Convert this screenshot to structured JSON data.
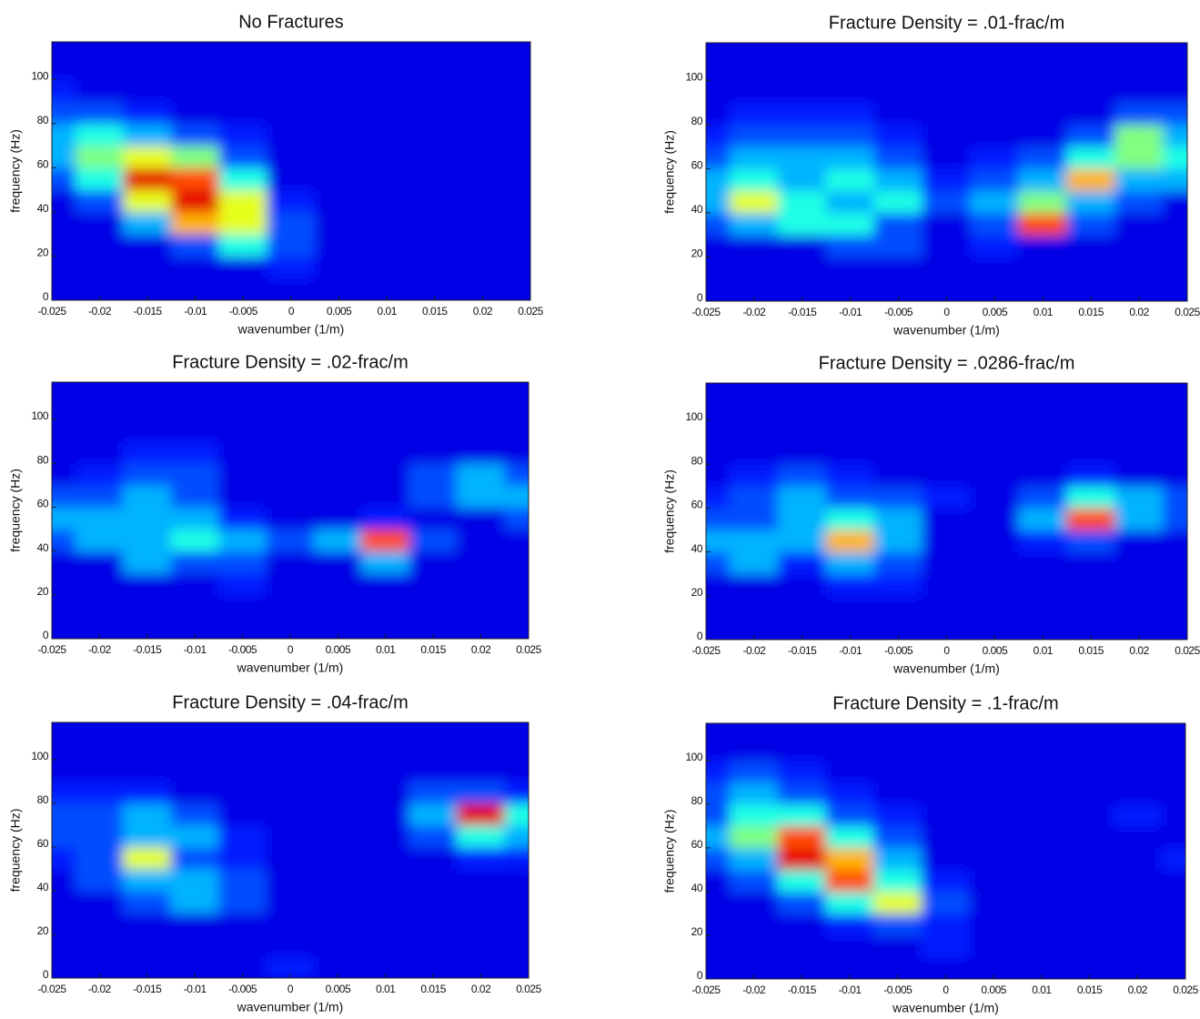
{
  "chart_data": [
    {
      "type": "heatmap",
      "title": "No Fractures",
      "xlabel": "wavenumber (1/m)",
      "ylabel": "frequency (Hz)",
      "colormap": "jet",
      "clim": [
        0,
        10
      ],
      "x": [
        -0.025,
        -0.02,
        -0.015,
        -0.01,
        -0.005,
        0,
        0.005,
        0.01,
        0.015,
        0.02,
        0.025
      ],
      "y": [
        5,
        15,
        25,
        35,
        45,
        55,
        65,
        75,
        85,
        95,
        105,
        115
      ],
      "z": [
        [
          1,
          1,
          1,
          1,
          1,
          1,
          1,
          1,
          1,
          1,
          1
        ],
        [
          1,
          1,
          1,
          1,
          1,
          1.5,
          1,
          1,
          1,
          1,
          1
        ],
        [
          1,
          1,
          1,
          2,
          4,
          2,
          1,
          1,
          1,
          1,
          1
        ],
        [
          1,
          1,
          3,
          7,
          6,
          2,
          1,
          1,
          1,
          1,
          1
        ],
        [
          1,
          2,
          6,
          9,
          6,
          1.5,
          1,
          1,
          1,
          1,
          1
        ],
        [
          2,
          4,
          9,
          8,
          4,
          1,
          1,
          1,
          1,
          1,
          1
        ],
        [
          3,
          5,
          6,
          5,
          2,
          1,
          1,
          1,
          1,
          1,
          1
        ],
        [
          3,
          4,
          3,
          2,
          1.5,
          1,
          1,
          1,
          1,
          1,
          1
        ],
        [
          2,
          2,
          1.5,
          1,
          1,
          1,
          1,
          1,
          1,
          1,
          1
        ],
        [
          1.5,
          1,
          1,
          1,
          1,
          1,
          1,
          1,
          1,
          1,
          1
        ],
        [
          1,
          1,
          1,
          1,
          1,
          1,
          1,
          1,
          1,
          1,
          1
        ],
        [
          1,
          1,
          1,
          1,
          1,
          1,
          1,
          1,
          1,
          1,
          1
        ]
      ],
      "xlim": [
        -0.025,
        0.025
      ],
      "ylim": [
        0,
        117
      ],
      "xticks": [
        -0.025,
        -0.02,
        -0.015,
        -0.01,
        -0.005,
        0,
        0.005,
        0.01,
        0.015,
        0.02,
        0.025
      ],
      "yticks": [
        0,
        20,
        40,
        60,
        80,
        100
      ]
    },
    {
      "type": "heatmap",
      "title": "Fracture Density = .01-frac/m",
      "xlabel": "wavenumber (1/m)",
      "ylabel": "frequency (Hz)",
      "colormap": "jet",
      "clim": [
        0,
        10
      ],
      "x": [
        -0.025,
        -0.02,
        -0.015,
        -0.01,
        -0.005,
        0,
        0.005,
        0.01,
        0.015,
        0.02,
        0.025
      ],
      "y": [
        5,
        15,
        25,
        35,
        45,
        55,
        65,
        75,
        85,
        95,
        105,
        115
      ],
      "z": [
        [
          1,
          1,
          1,
          1,
          1,
          1,
          1,
          1,
          1,
          1,
          1
        ],
        [
          1,
          1,
          1,
          1,
          1,
          1,
          1,
          1,
          1,
          1,
          1
        ],
        [
          1,
          1,
          1,
          2,
          2,
          1,
          1.5,
          1,
          1,
          1,
          1
        ],
        [
          2,
          3,
          4,
          4,
          2,
          1,
          2,
          8,
          2,
          1,
          1
        ],
        [
          3,
          6,
          4,
          3,
          4,
          2,
          3,
          5,
          3,
          2,
          1
        ],
        [
          3,
          4,
          3,
          4,
          3,
          1.5,
          2,
          3,
          7,
          3,
          3
        ],
        [
          2,
          3,
          3,
          3,
          2,
          1,
          1.5,
          2,
          4,
          5,
          4
        ],
        [
          1.5,
          2,
          2,
          2,
          1.5,
          1,
          1,
          1,
          2,
          5,
          3
        ],
        [
          1,
          1.5,
          1.5,
          1.5,
          1,
          1,
          1,
          1,
          1,
          2,
          2
        ],
        [
          1,
          1,
          1,
          1,
          1,
          1,
          1,
          1,
          1,
          1,
          1
        ],
        [
          1,
          1,
          1,
          1,
          1,
          1,
          1,
          1,
          1,
          1,
          1
        ],
        [
          1,
          1,
          1,
          1,
          1,
          1,
          1,
          1,
          1,
          1,
          1
        ]
      ],
      "xlim": [
        -0.025,
        0.025
      ],
      "ylim": [
        0,
        117
      ],
      "xticks": [
        -0.025,
        -0.02,
        -0.015,
        -0.01,
        -0.005,
        0,
        0.005,
        0.01,
        0.015,
        0.02,
        0.025
      ],
      "yticks": [
        0,
        20,
        40,
        60,
        80,
        100
      ]
    },
    {
      "type": "heatmap",
      "title": "Fracture Density = .02-frac/m",
      "xlabel": "wavenumber (1/m)",
      "ylabel": "frequency (Hz)",
      "colormap": "jet",
      "clim": [
        0,
        10
      ],
      "x": [
        -0.025,
        -0.02,
        -0.015,
        -0.01,
        -0.005,
        0,
        0.005,
        0.01,
        0.015,
        0.02,
        0.025
      ],
      "y": [
        5,
        15,
        25,
        35,
        45,
        55,
        65,
        75,
        85,
        95,
        105,
        115
      ],
      "z": [
        [
          1,
          1,
          1,
          1,
          1,
          1,
          1,
          1,
          1,
          1,
          1
        ],
        [
          1,
          1,
          1,
          1,
          1,
          1,
          1,
          1,
          1,
          1,
          1
        ],
        [
          1,
          1,
          1,
          1,
          1.5,
          1,
          1,
          1,
          1,
          1,
          1
        ],
        [
          1,
          1,
          3,
          2,
          2,
          1,
          1,
          3,
          1,
          1,
          1
        ],
        [
          2,
          3,
          3,
          4,
          3,
          2,
          3,
          8,
          2,
          1,
          1
        ],
        [
          3,
          3,
          3,
          3,
          1.5,
          1,
          1,
          1.5,
          1,
          1,
          2
        ],
        [
          2,
          2,
          3,
          2,
          1,
          1,
          1,
          1,
          2,
          3,
          3
        ],
        [
          1,
          1.5,
          2,
          2,
          1,
          1,
          1,
          1,
          2,
          3,
          2
        ],
        [
          1,
          1,
          1.5,
          1.5,
          1,
          1,
          1,
          1,
          1,
          1,
          1
        ],
        [
          1,
          1,
          1,
          1,
          1,
          1,
          1,
          1,
          1,
          1,
          1
        ],
        [
          1,
          1,
          1,
          1,
          1,
          1,
          1,
          1,
          1,
          1,
          1
        ],
        [
          1,
          1,
          1,
          1,
          1,
          1,
          1,
          1,
          1,
          1,
          1
        ]
      ],
      "xlim": [
        -0.025,
        0.025
      ],
      "ylim": [
        0,
        117
      ],
      "xticks": [
        -0.025,
        -0.02,
        -0.015,
        -0.01,
        -0.005,
        0,
        0.005,
        0.01,
        0.015,
        0.02,
        0.025
      ],
      "yticks": [
        0,
        20,
        40,
        60,
        80,
        100
      ]
    },
    {
      "type": "heatmap",
      "title": "Fracture Density = .0286-frac/m",
      "xlabel": "wavenumber (1/m)",
      "ylabel": "frequency (Hz)",
      "colormap": "jet",
      "clim": [
        0,
        10
      ],
      "x": [
        -0.025,
        -0.02,
        -0.015,
        -0.01,
        -0.005,
        0,
        0.005,
        0.01,
        0.015,
        0.02,
        0.025
      ],
      "y": [
        5,
        15,
        25,
        35,
        45,
        55,
        65,
        75,
        85,
        95,
        105,
        115
      ],
      "z": [
        [
          1,
          1,
          1,
          1,
          1,
          1,
          1,
          1,
          1,
          1,
          1
        ],
        [
          1,
          1,
          1,
          1,
          1,
          1,
          1,
          1,
          1,
          1,
          1
        ],
        [
          1,
          1,
          1,
          1.5,
          1.5,
          1,
          1,
          1,
          1,
          1,
          1
        ],
        [
          2,
          3,
          1.5,
          3,
          2,
          1,
          1,
          1,
          1,
          1,
          1
        ],
        [
          3,
          3,
          3,
          7,
          3,
          1,
          1,
          1.5,
          2,
          1,
          1
        ],
        [
          2,
          2,
          3,
          4,
          3,
          1,
          1,
          3,
          8,
          3,
          2
        ],
        [
          1.5,
          2,
          3,
          2,
          2,
          1.5,
          1,
          2,
          4,
          3,
          2
        ],
        [
          1,
          1.5,
          2,
          1.5,
          1,
          1,
          1,
          1,
          1.5,
          1,
          1
        ],
        [
          1,
          1,
          1,
          1,
          1,
          1,
          1,
          1,
          1,
          1,
          1
        ],
        [
          1,
          1,
          1,
          1,
          1,
          1,
          1,
          1,
          1,
          1,
          1
        ],
        [
          1,
          1,
          1,
          1,
          1,
          1,
          1,
          1,
          1,
          1,
          1
        ],
        [
          1,
          1,
          1,
          1,
          1,
          1,
          1,
          1,
          1,
          1,
          1
        ]
      ],
      "xlim": [
        -0.025,
        0.025
      ],
      "ylim": [
        0,
        117
      ],
      "xticks": [
        -0.025,
        -0.02,
        -0.015,
        -0.01,
        -0.005,
        0,
        0.005,
        0.01,
        0.015,
        0.02,
        0.025
      ],
      "yticks": [
        0,
        20,
        40,
        60,
        80,
        100
      ]
    },
    {
      "type": "heatmap",
      "title": "Fracture Density = .04-frac/m",
      "xlabel": "wavenumber (1/m)",
      "ylabel": "frequency (Hz)",
      "colormap": "jet",
      "clim": [
        0,
        10
      ],
      "x": [
        -0.025,
        -0.02,
        -0.015,
        -0.01,
        -0.005,
        0,
        0.005,
        0.01,
        0.015,
        0.02,
        0.025
      ],
      "y": [
        5,
        15,
        25,
        35,
        45,
        55,
        65,
        75,
        85,
        95,
        105,
        115
      ],
      "z": [
        [
          1,
          1,
          1,
          1,
          1,
          1.5,
          1,
          1,
          1,
          1,
          1
        ],
        [
          1,
          1,
          1,
          1,
          1,
          1,
          1,
          1,
          1,
          1,
          1
        ],
        [
          1,
          1,
          1,
          1,
          1,
          1,
          1,
          1,
          1,
          1,
          1
        ],
        [
          1,
          1,
          2,
          3,
          2,
          1,
          1,
          1,
          1,
          1,
          1
        ],
        [
          1,
          2,
          3,
          3,
          2,
          1,
          1,
          1,
          1,
          1,
          1
        ],
        [
          1.5,
          2,
          6,
          2,
          1.5,
          1,
          1,
          1,
          1,
          1.5,
          1.5
        ],
        [
          2,
          2,
          3,
          3,
          1.5,
          1,
          1,
          1,
          2,
          4,
          3
        ],
        [
          2,
          2,
          3,
          2,
          1,
          1,
          1,
          1,
          3,
          9,
          4
        ],
        [
          1.5,
          1.5,
          1.5,
          1,
          1,
          1,
          1,
          1,
          2,
          2,
          1.5
        ],
        [
          1,
          1,
          1,
          1,
          1,
          1,
          1,
          1,
          1,
          1,
          1
        ],
        [
          1,
          1,
          1,
          1,
          1,
          1,
          1,
          1,
          1,
          1,
          1
        ],
        [
          1,
          1,
          1,
          1,
          1,
          1,
          1,
          1,
          1,
          1,
          1
        ]
      ],
      "xlim": [
        -0.025,
        0.025
      ],
      "ylim": [
        0,
        117
      ],
      "xticks": [
        -0.025,
        -0.02,
        -0.015,
        -0.01,
        -0.005,
        0,
        0.005,
        0.01,
        0.015,
        0.02,
        0.025
      ],
      "yticks": [
        0,
        20,
        40,
        60,
        80,
        100
      ]
    },
    {
      "type": "heatmap",
      "title": "Fracture Density = .1-frac/m",
      "xlabel": "wavenumber (1/m)",
      "ylabel": "frequency (Hz)",
      "colormap": "jet",
      "clim": [
        0,
        10
      ],
      "x": [
        -0.025,
        -0.02,
        -0.015,
        -0.01,
        -0.005,
        0,
        0.005,
        0.01,
        0.015,
        0.02,
        0.025
      ],
      "y": [
        5,
        15,
        25,
        35,
        45,
        55,
        65,
        75,
        85,
        95,
        105,
        115
      ],
      "z": [
        [
          1,
          1,
          1,
          1,
          1,
          1,
          1,
          1,
          1,
          1,
          1
        ],
        [
          1,
          1,
          1,
          1,
          1,
          1.5,
          1,
          1,
          1,
          1,
          1
        ],
        [
          1,
          1,
          1,
          1.5,
          2,
          1.5,
          1,
          1,
          1,
          1,
          1
        ],
        [
          1,
          1,
          2,
          4,
          6,
          2,
          1,
          1,
          1,
          1,
          1
        ],
        [
          1,
          2,
          4,
          8,
          4,
          1.5,
          1,
          1,
          1,
          1,
          1
        ],
        [
          2,
          3,
          9,
          7,
          3,
          1,
          1,
          1,
          1,
          1,
          1.5
        ],
        [
          3,
          5,
          8,
          4,
          2,
          1,
          1,
          1,
          1,
          1,
          1
        ],
        [
          2,
          4,
          4,
          2,
          1.5,
          1,
          1,
          1,
          1,
          1.5,
          1
        ],
        [
          2,
          3,
          2,
          1.5,
          1,
          1,
          1,
          1,
          1,
          1,
          1
        ],
        [
          1.5,
          2,
          1.5,
          1,
          1,
          1,
          1,
          1,
          1,
          1,
          1
        ],
        [
          1,
          1,
          1,
          1,
          1,
          1,
          1,
          1,
          1,
          1,
          1
        ],
        [
          1,
          1,
          1,
          1,
          1,
          1,
          1,
          1,
          1,
          1,
          1
        ]
      ],
      "xlim": [
        -0.025,
        0.025
      ],
      "ylim": [
        0,
        117
      ],
      "xticks": [
        -0.025,
        -0.02,
        -0.015,
        -0.01,
        -0.005,
        0,
        0.005,
        0.01,
        0.015,
        0.02,
        0.025
      ],
      "yticks": [
        0,
        20,
        40,
        60,
        80,
        100
      ]
    }
  ]
}
